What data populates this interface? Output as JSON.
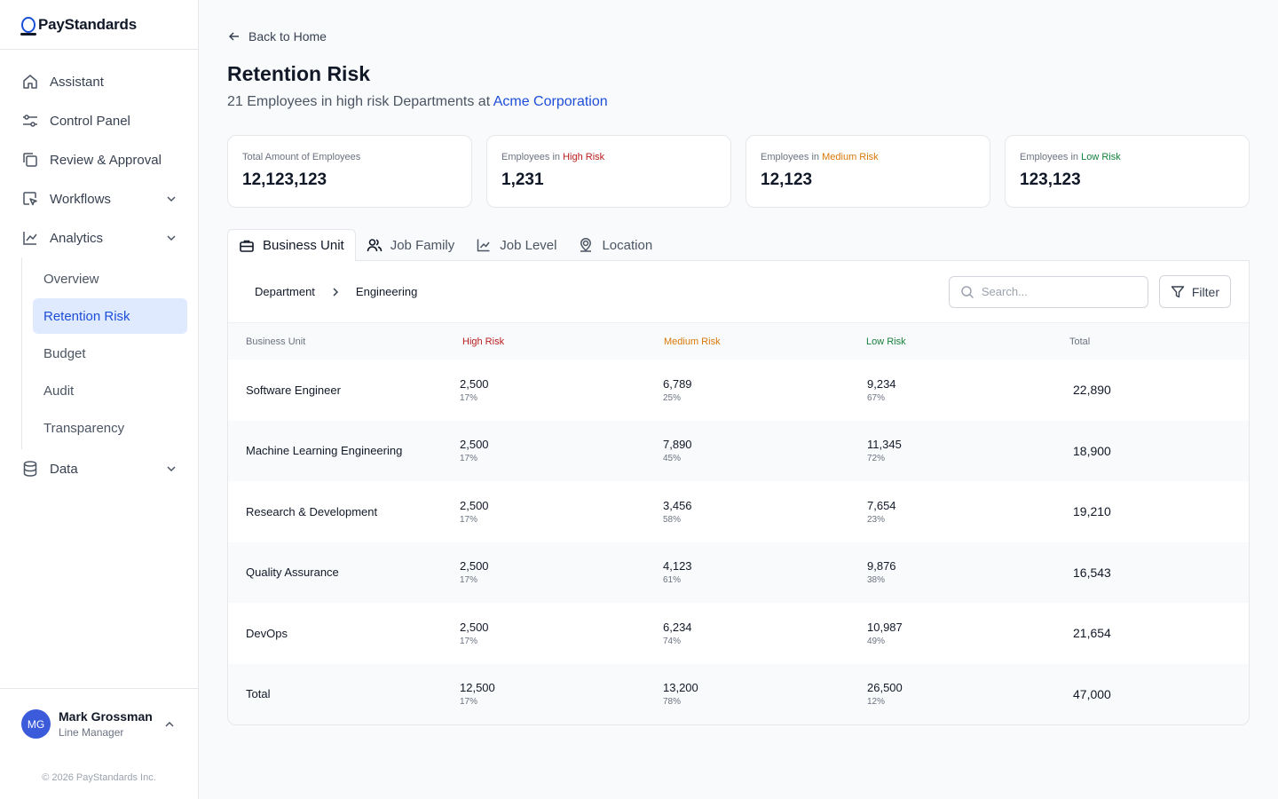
{
  "brand": {
    "name": "PayStandards"
  },
  "sidebar": {
    "items": [
      {
        "label": "Assistant"
      },
      {
        "label": "Control Panel"
      },
      {
        "label": "Review & Approval"
      },
      {
        "label": "Workflows"
      },
      {
        "label": "Analytics"
      },
      {
        "label": "Data"
      }
    ],
    "analytics_sub": [
      {
        "label": "Overview"
      },
      {
        "label": "Retention Risk",
        "active": true
      },
      {
        "label": "Budget"
      },
      {
        "label": "Audit"
      },
      {
        "label": "Transparency"
      }
    ],
    "user": {
      "initials": "MG",
      "name": "Mark Grossman",
      "role": "Line Manager"
    },
    "copyright": "© 2026 PayStandards Inc."
  },
  "header": {
    "back_label": "Back to Home",
    "title": "Retention Risk",
    "subtitle_prefix": "21 Employees in high risk Departments at",
    "company": "Acme Corporation"
  },
  "stats": [
    {
      "label_prefix": "Total Amount of Employees",
      "label_accent": "",
      "value": "12,123,123"
    },
    {
      "label_prefix": "Employees in",
      "label_accent": "High Risk",
      "value": "1,231"
    },
    {
      "label_prefix": "Employees in",
      "label_accent": "Medium Risk",
      "value": "12,123"
    },
    {
      "label_prefix": "Employees in",
      "label_accent": "Low Risk",
      "value": "123,123"
    }
  ],
  "tabs": [
    {
      "label": "Business Unit",
      "icon": "briefcase-icon",
      "active": true
    },
    {
      "label": "Job Family",
      "icon": "users-icon"
    },
    {
      "label": "Job Level",
      "icon": "chart-line-icon"
    },
    {
      "label": "Location",
      "icon": "location-icon"
    }
  ],
  "toolbar": {
    "crumbs": [
      "Department",
      "Engineering"
    ],
    "search_placeholder": "Search...",
    "filter_label": "Filter"
  },
  "table": {
    "headers": [
      "Business Unit",
      "High Risk",
      "Medium Risk",
      "Low Risk",
      "Total"
    ],
    "rows": [
      {
        "name": "Software Engineer",
        "high": "2,500",
        "high_pct": "17%",
        "medium": "6,789",
        "medium_pct": "25%",
        "low": "9,234",
        "low_pct": "67%",
        "total": "22,890"
      },
      {
        "name": "Machine Learning Engineering",
        "high": "2,500",
        "high_pct": "17%",
        "medium": "7,890",
        "medium_pct": "45%",
        "low": "11,345",
        "low_pct": "72%",
        "total": "18,900"
      },
      {
        "name": "Research & Development",
        "high": "2,500",
        "high_pct": "17%",
        "medium": "3,456",
        "medium_pct": "58%",
        "low": "7,654",
        "low_pct": "23%",
        "total": "19,210"
      },
      {
        "name": "Quality Assurance",
        "high": "2,500",
        "high_pct": "17%",
        "medium": "4,123",
        "medium_pct": "61%",
        "low": "9,876",
        "low_pct": "38%",
        "total": "16,543"
      },
      {
        "name": "DevOps",
        "high": "2,500",
        "high_pct": "17%",
        "medium": "6,234",
        "medium_pct": "74%",
        "low": "10,987",
        "low_pct": "49%",
        "total": "21,654"
      },
      {
        "name": "Total",
        "high": "12,500",
        "high_pct": "17%",
        "medium": "13,200",
        "medium_pct": "78%",
        "low": "26,500",
        "low_pct": "12%",
        "total": "47,000"
      }
    ]
  },
  "colors": {
    "accent": "#1d4ed8",
    "high": "#b91c1c",
    "medium": "#d97706",
    "low": "#15803d"
  }
}
